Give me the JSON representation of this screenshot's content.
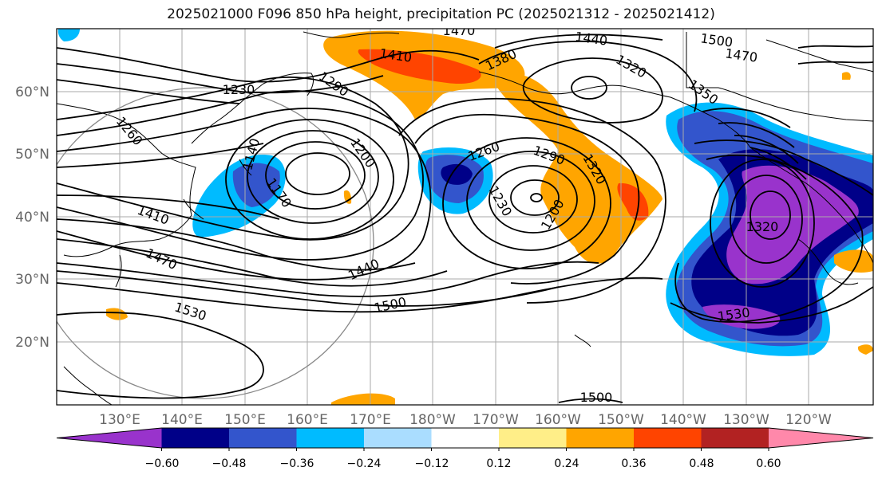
{
  "title": "2025021000 F096 850 hPa height, precipitation PC (2025021312 - 2025021412)",
  "lat_labels": [
    "60°N",
    "50°N",
    "40°N",
    "30°N",
    "20°N"
  ],
  "lon_labels": [
    "130°E",
    "140°E",
    "150°E",
    "160°E",
    "170°E",
    "180°W",
    "170°W",
    "160°W",
    "150°W",
    "140°W",
    "130°W",
    "120°W"
  ],
  "colorbar": {
    "colors": [
      "#9933cc",
      "#000088",
      "#3355cc",
      "#00bbff",
      "#aaddff",
      "#ffffff",
      "#ffee88",
      "#ffa500",
      "#ff4400",
      "#b22222",
      "#ff88aa"
    ],
    "tick_labels": [
      "−0.60",
      "−0.48",
      "−0.36",
      "−0.24",
      "−0.12",
      "0.12",
      "0.24",
      "0.36",
      "0.48",
      "0.60"
    ]
  },
  "contour_labels": [
    "1470",
    "1440",
    "1500",
    "1470",
    "1410",
    "1380",
    "1320",
    "1230",
    "1290",
    "1350",
    "1260",
    "1200",
    "1320",
    "1290",
    "1260",
    "1140",
    "1170",
    "1230",
    "1200",
    "1410",
    "1470",
    "1320",
    "1440",
    "1500",
    "1530",
    "1530",
    "1500"
  ]
}
